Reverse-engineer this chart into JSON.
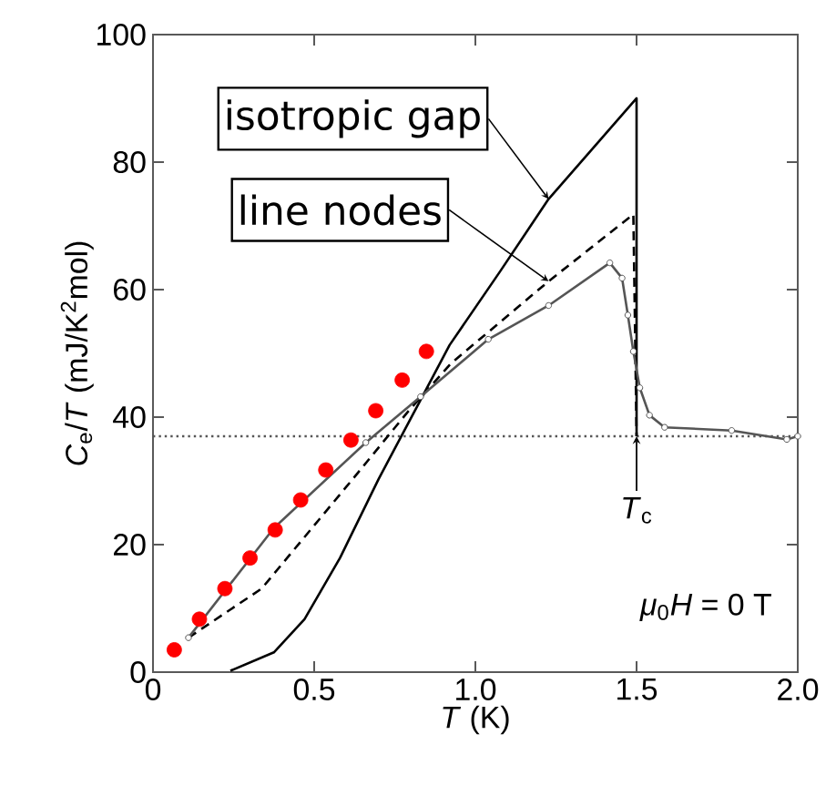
{
  "chart_data": {
    "type": "line",
    "xlabel": "*T* (K)",
    "ylabel": "*C*$_{e}$/*T* (mJ/K$^{2}$mol)",
    "xlim": [
      0,
      2
    ],
    "ylim": [
      0,
      100
    ],
    "xticks": [
      0,
      0.5,
      {
        "value": 1,
        "label": "1.0"
      },
      1.5,
      {
        "value": 2,
        "label": "2.0"
      }
    ],
    "yticks": [
      0,
      20,
      40,
      60,
      80,
      100
    ],
    "series": [
      {
        "name": "isotropic gap",
        "type": "line",
        "color": "#000000",
        "line_style": "solid",
        "x": [
          0.24,
          0.375,
          0.47,
          0.58,
          0.7,
          0.83,
          0.92,
          1.076,
          1.227,
          1.5,
          1.5
        ],
        "values": [
          0.2,
          3.1,
          8.3,
          17.9,
          30.3,
          42.7,
          51.3,
          62.8,
          74.2,
          90,
          37
        ]
      },
      {
        "name": "line nodes",
        "type": "line",
        "color": "#000000",
        "line_style": "dashed",
        "x": [
          0.11,
          0.337,
          0.62,
          0.79,
          0.924,
          1.227,
          1.49,
          1.5
        ],
        "values": [
          5.4,
          13.1,
          30.3,
          40.8,
          48.4,
          61.3,
          71.8,
          37
        ]
      },
      {
        "color": "#555555",
        "line_style": "solid",
        "marker": "circle",
        "x": [
          0.11,
          0.375,
          0.66,
          0.83,
          1.04,
          1.227,
          1.417,
          1.455,
          1.473,
          1.49,
          1.51,
          1.54,
          1.587,
          1.795,
          1.966,
          2.0
        ],
        "values": [
          5.4,
          22.6,
          36.0,
          43.2,
          52.2,
          57.5,
          64.2,
          61.8,
          56.0,
          50.3,
          44.6,
          40.3,
          38.4,
          37.9,
          36.5,
          37.0
        ]
      },
      {
        "type": "scatter",
        "color": "#ff0000",
        "marker": "circle",
        "x": [
          0.066,
          0.144,
          0.223,
          0.301,
          0.379,
          0.458,
          0.536,
          0.614,
          0.691,
          0.773,
          0.848
        ],
        "values": [
          3.5,
          8.3,
          13.1,
          17.9,
          22.3,
          27.0,
          31.7,
          36.4,
          41.0,
          45.8,
          50.3
        ]
      }
    ],
    "ref_lines": [
      {
        "axis": "y",
        "value": 37,
        "color": "#555555",
        "line_style": "dotted"
      }
    ],
    "annotations": [
      {
        "text": "*T*$_{c}$",
        "x": 1.5,
        "y": 37
      },
      "*μ*$_{0}$*H* = 0 T"
    ]
  }
}
